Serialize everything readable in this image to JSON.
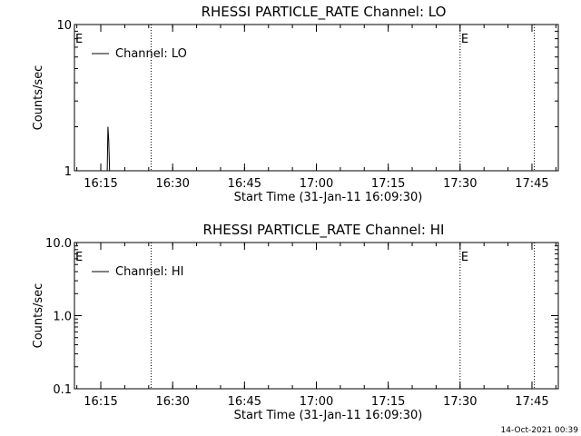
{
  "timestamp": "14-Oct-2021 00:39",
  "chart_data": [
    {
      "type": "line",
      "title": "RHESSI PARTICLE_RATE Channel: LO",
      "xlabel": "Start Time (31-Jan-11 16:09:30)",
      "ylabel": "Counts/sec",
      "yscale": "log",
      "ylim": [
        1,
        10
      ],
      "y_ticks": [
        1,
        10
      ],
      "y_tick_labels": [
        "1",
        "10"
      ],
      "x_ticks": [
        "16:15",
        "16:30",
        "16:45",
        "17:00",
        "17:15",
        "17:30",
        "17:45"
      ],
      "x_range": [
        "16:09:30",
        "17:50:30"
      ],
      "grid": false,
      "legend": {
        "position": "top-left",
        "entries": [
          "Channel: LO"
        ]
      },
      "markers": [
        {
          "time": "16:25:30",
          "label": ""
        },
        {
          "time": "17:30:00",
          "label": "E"
        },
        {
          "time": "17:45:30",
          "label": ""
        }
      ],
      "edge_label": "E",
      "series": [
        {
          "name": "Channel: LO",
          "points": [
            [
              "16:16:20",
              1.0
            ],
            [
              "16:16:30",
              2.0
            ],
            [
              "16:16:40",
              1.6
            ],
            [
              "16:16:50",
              1.0
            ]
          ]
        }
      ]
    },
    {
      "type": "line",
      "title": "RHESSI PARTICLE_RATE Channel: HI",
      "xlabel": "Start Time (31-Jan-11 16:09:30)",
      "ylabel": "Counts/sec",
      "yscale": "log",
      "ylim": [
        0.1,
        10
      ],
      "y_ticks": [
        0.1,
        1,
        10
      ],
      "y_tick_labels": [
        "0.1",
        "1.0",
        "10.0"
      ],
      "x_ticks": [
        "16:15",
        "16:30",
        "16:45",
        "17:00",
        "17:15",
        "17:30",
        "17:45"
      ],
      "x_range": [
        "16:09:30",
        "17:50:30"
      ],
      "grid": false,
      "legend": {
        "position": "top-left",
        "entries": [
          "Channel: HI"
        ]
      },
      "markers": [
        {
          "time": "16:25:30",
          "label": ""
        },
        {
          "time": "17:30:00",
          "label": "E"
        },
        {
          "time": "17:45:30",
          "label": ""
        }
      ],
      "edge_label": "E",
      "series": [
        {
          "name": "Channel: HI",
          "points": []
        }
      ]
    }
  ]
}
